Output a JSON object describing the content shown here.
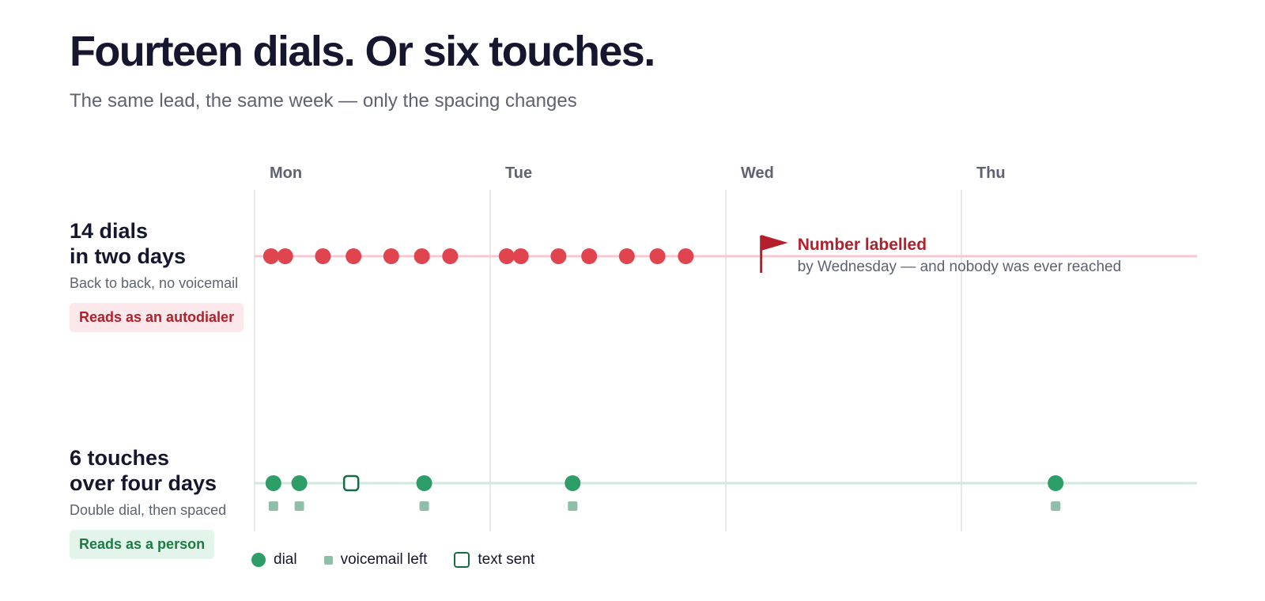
{
  "title": "Fourteen dials. Or six touches.",
  "subtitle": "The same lead, the same week — only the spacing changes",
  "colors": {
    "red": "#e0454f",
    "red_line": "#f5c9cf",
    "red_dark": "#b3202b",
    "green": "#2e9e69",
    "green_line": "#cfe9dc",
    "green_dark": "#176b45",
    "voicemail": "#8fbfa6",
    "grid": "#e6e8ec",
    "day_label": "#5f6270"
  },
  "rows": [
    {
      "title_line1": "14 dials",
      "title_line2": "in two days",
      "description": "Back to back, no voicemail",
      "badge": "Reads as an autodialer"
    },
    {
      "title_line1": "6 touches",
      "title_line2": "over four days",
      "description": "Double dial, then spaced",
      "badge": "Reads as a person"
    }
  ],
  "legend": {
    "dial": "dial",
    "voicemail": "voicemail left",
    "text": "text sent"
  },
  "chart_data": {
    "type": "scatter",
    "x_axis": {
      "unit": "days",
      "range": [
        0,
        4
      ],
      "days": [
        "Mon",
        "Tue",
        "Wed",
        "Thu"
      ]
    },
    "grid": true,
    "series": [
      {
        "row": 0,
        "marks": [
          {
            "x": 0.07,
            "kind": "dial"
          },
          {
            "x": 0.13,
            "kind": "dial"
          },
          {
            "x": 0.29,
            "kind": "dial"
          },
          {
            "x": 0.42,
            "kind": "dial"
          },
          {
            "x": 0.58,
            "kind": "dial"
          },
          {
            "x": 0.71,
            "kind": "dial"
          },
          {
            "x": 0.83,
            "kind": "dial"
          },
          {
            "x": 1.07,
            "kind": "dial"
          },
          {
            "x": 1.13,
            "kind": "dial"
          },
          {
            "x": 1.29,
            "kind": "dial"
          },
          {
            "x": 1.42,
            "kind": "dial"
          },
          {
            "x": 1.58,
            "kind": "dial"
          },
          {
            "x": 1.71,
            "kind": "dial"
          },
          {
            "x": 1.83,
            "kind": "dial"
          }
        ]
      },
      {
        "row": 1,
        "marks": [
          {
            "x": 0.08,
            "kind": "dial",
            "voicemail": true
          },
          {
            "x": 0.19,
            "kind": "dial",
            "voicemail": true
          },
          {
            "x": 0.41,
            "kind": "text"
          },
          {
            "x": 0.72,
            "kind": "dial",
            "voicemail": true
          },
          {
            "x": 1.35,
            "kind": "dial",
            "voicemail": true
          },
          {
            "x": 3.4,
            "kind": "dial",
            "voicemail": true
          }
        ]
      }
    ],
    "annotation": {
      "x": 2.15,
      "row": 0,
      "title": "Number labelled",
      "text": "by Wednesday — and nobody was ever reached"
    }
  }
}
